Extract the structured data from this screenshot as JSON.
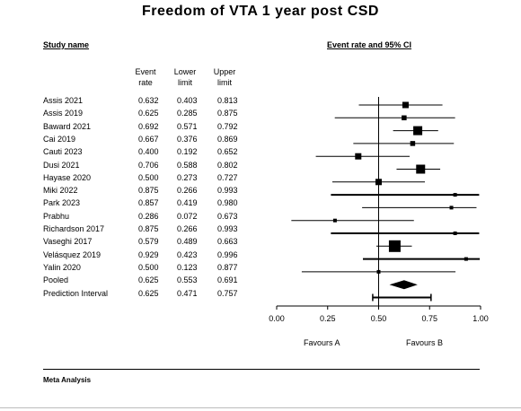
{
  "chart_data": {
    "type": "forest",
    "title": "Freedom of VTA 1 year post CSD",
    "study_header": "Study name",
    "effect_header": "Event rate and 95% CI",
    "column_headers": [
      [
        "Event",
        "rate"
      ],
      [
        "Lower",
        "limit"
      ],
      [
        "Upper",
        "limit"
      ]
    ],
    "studies": [
      {
        "name": "Assis 2021",
        "rate": 0.632,
        "lower": 0.403,
        "upper": 0.813,
        "rate_text": "0.632",
        "lower_text": "0.403",
        "upper_text": "0.813",
        "weight": "medium"
      },
      {
        "name": "Assis 2019",
        "rate": 0.625,
        "lower": 0.285,
        "upper": 0.875,
        "rate_text": "0.625",
        "lower_text": "0.285",
        "upper_text": "0.875",
        "weight": "small"
      },
      {
        "name": "Baward 2021",
        "rate": 0.692,
        "lower": 0.571,
        "upper": 0.792,
        "rate_text": "0.692",
        "lower_text": "0.571",
        "upper_text": "0.792",
        "weight": "large"
      },
      {
        "name": "Cai 2019",
        "rate": 0.667,
        "lower": 0.376,
        "upper": 0.869,
        "rate_text": "0.667",
        "lower_text": "0.376",
        "upper_text": "0.869",
        "weight": "small"
      },
      {
        "name": "Cauti 2023",
        "rate": 0.4,
        "lower": 0.192,
        "upper": 0.652,
        "rate_text": "0.400",
        "lower_text": "0.192",
        "upper_text": "0.652",
        "weight": "medium"
      },
      {
        "name": "Dusi 2021",
        "rate": 0.706,
        "lower": 0.588,
        "upper": 0.802,
        "rate_text": "0.706",
        "lower_text": "0.588",
        "upper_text": "0.802",
        "weight": "large"
      },
      {
        "name": "Hayase 2020",
        "rate": 0.5,
        "lower": 0.273,
        "upper": 0.727,
        "rate_text": "0.500",
        "lower_text": "0.273",
        "upper_text": "0.727",
        "weight": "medium"
      },
      {
        "name": "Miki 2022",
        "rate": 0.875,
        "lower": 0.266,
        "upper": 0.993,
        "rate_text": "0.875",
        "lower_text": "0.266",
        "upper_text": "0.993",
        "weight": "tiny"
      },
      {
        "name": "Park 2023",
        "rate": 0.857,
        "lower": 0.419,
        "upper": 0.98,
        "rate_text": "0.857",
        "lower_text": "0.419",
        "upper_text": "0.980",
        "weight": "tiny"
      },
      {
        "name": "Prabhu",
        "rate": 0.286,
        "lower": 0.072,
        "upper": 0.673,
        "rate_text": "0.286",
        "lower_text": "0.072",
        "upper_text": "0.673",
        "weight": "tiny"
      },
      {
        "name": "Richardson 2017",
        "rate": 0.875,
        "lower": 0.266,
        "upper": 0.993,
        "rate_text": "0.875",
        "lower_text": "0.266",
        "upper_text": "0.993",
        "weight": "tiny"
      },
      {
        "name": "Vaseghi 2017",
        "rate": 0.579,
        "lower": 0.489,
        "upper": 0.663,
        "rate_text": "0.579",
        "lower_text": "0.489",
        "upper_text": "0.663",
        "weight": "xlarge"
      },
      {
        "name": "Velásquez 2019",
        "rate": 0.929,
        "lower": 0.423,
        "upper": 0.996,
        "rate_text": "0.929",
        "lower_text": "0.423",
        "upper_text": "0.996",
        "weight": "tiny"
      },
      {
        "name": "Yalin 2020",
        "rate": 0.5,
        "lower": 0.123,
        "upper": 0.877,
        "rate_text": "0.500",
        "lower_text": "0.123",
        "upper_text": "0.877",
        "weight": "tiny"
      }
    ],
    "pooled": {
      "name": "Pooled",
      "rate": 0.625,
      "lower": 0.553,
      "upper": 0.691,
      "rate_text": "0.625",
      "lower_text": "0.553",
      "upper_text": "0.691"
    },
    "prediction_interval": {
      "name": "Prediction Interval",
      "rate": 0.625,
      "lower": 0.471,
      "upper": 0.757,
      "rate_text": "0.625",
      "lower_text": "0.471",
      "upper_text": "0.757"
    },
    "xlim": [
      0,
      1
    ],
    "x_ticks": [
      0,
      0.25,
      0.5,
      0.75,
      1
    ],
    "x_tick_labels": [
      "0.00",
      "0.25",
      "0.50",
      "0.75",
      "1.00"
    ],
    "favours_left": "Favours A",
    "favours_right": "Favours B",
    "footer": "Meta Analysis"
  }
}
